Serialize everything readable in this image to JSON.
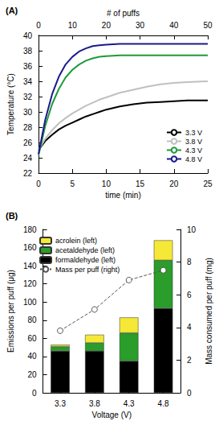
{
  "chart_data": [
    {
      "type": "line",
      "panel_label": "(A)",
      "x_label": "time (min)",
      "x2_label": "# of puffs",
      "y_label": "Temperature (°C)",
      "x": [
        0,
        1,
        2,
        3,
        4,
        5,
        6,
        7,
        8,
        9,
        10,
        12,
        14,
        16,
        18,
        20,
        22,
        25
      ],
      "series": [
        {
          "name": "3.3 V",
          "color": "#000000",
          "values": [
            25.0,
            26.2,
            27.0,
            27.7,
            28.2,
            28.6,
            29.0,
            29.4,
            29.7,
            30.0,
            30.3,
            30.7,
            31.0,
            31.2,
            31.3,
            31.4,
            31.5,
            31.5
          ]
        },
        {
          "name": "3.8 V",
          "color": "#c0c0c0",
          "values": [
            25.0,
            26.5,
            27.6,
            28.5,
            29.2,
            29.8,
            30.3,
            30.8,
            31.2,
            31.6,
            31.9,
            32.5,
            32.9,
            33.3,
            33.6,
            33.8,
            33.9,
            34.0
          ]
        },
        {
          "name": "4.3 V",
          "color": "#1f9a3c",
          "values": [
            24.3,
            28.2,
            31.0,
            33.0,
            34.5,
            35.5,
            36.2,
            36.7,
            37.0,
            37.2,
            37.3,
            37.4,
            37.4,
            37.4,
            37.4,
            37.4,
            37.4,
            37.4
          ]
        },
        {
          "name": "4.8 V",
          "color": "#1a1a8c",
          "values": [
            24.5,
            29.0,
            32.3,
            34.6,
            36.2,
            37.2,
            37.9,
            38.3,
            38.6,
            38.7,
            38.8,
            38.9,
            38.9,
            38.9,
            38.9,
            38.9,
            38.9,
            38.9
          ]
        }
      ],
      "xlim": [
        0,
        25
      ],
      "xticks": [
        0,
        5,
        10,
        15,
        20,
        25
      ],
      "x2lim": [
        0,
        50
      ],
      "x2ticks": [
        0,
        10,
        20,
        30,
        40,
        50
      ],
      "ylim": [
        22,
        40
      ],
      "yticks": [
        22,
        24,
        26,
        28,
        30,
        32,
        34,
        36,
        38,
        40
      ],
      "grid": false,
      "legend": "lower right"
    },
    {
      "type": "bar",
      "panel_label": "(B)",
      "x_label": "Voltage (V)",
      "y_label": "Emissions per puff (μg)",
      "y2_label": "Mass consumed per puff (mg)",
      "categories": [
        "3.3",
        "3.8",
        "4.3",
        "4.8"
      ],
      "stacked": true,
      "series": [
        {
          "name": "acrolein (left)",
          "color": "#f5e836",
          "values": [
            2,
            9,
            17,
            22
          ]
        },
        {
          "name": "acetaldehyde (left)",
          "color": "#2a9d2a",
          "values": [
            5,
            9,
            31,
            53
          ]
        },
        {
          "name": "formaldehyde (left)",
          "color": "#000000",
          "values": [
            46,
            46,
            35,
            93
          ]
        },
        {
          "name": "Mass per puff (right)",
          "type": "line",
          "axis": "y2",
          "color": "#555555",
          "marker": "open_circle",
          "line_style": "dashed",
          "values": [
            3.8,
            5.1,
            6.9,
            7.5
          ]
        }
      ],
      "ylim": [
        0,
        180
      ],
      "yticks": [
        0,
        20,
        40,
        60,
        80,
        100,
        120,
        140,
        160,
        180
      ],
      "y2lim": [
        0,
        10
      ],
      "y2ticks": [
        0,
        2,
        4,
        6,
        8,
        10
      ],
      "grid": false,
      "legend": "upper left"
    }
  ]
}
